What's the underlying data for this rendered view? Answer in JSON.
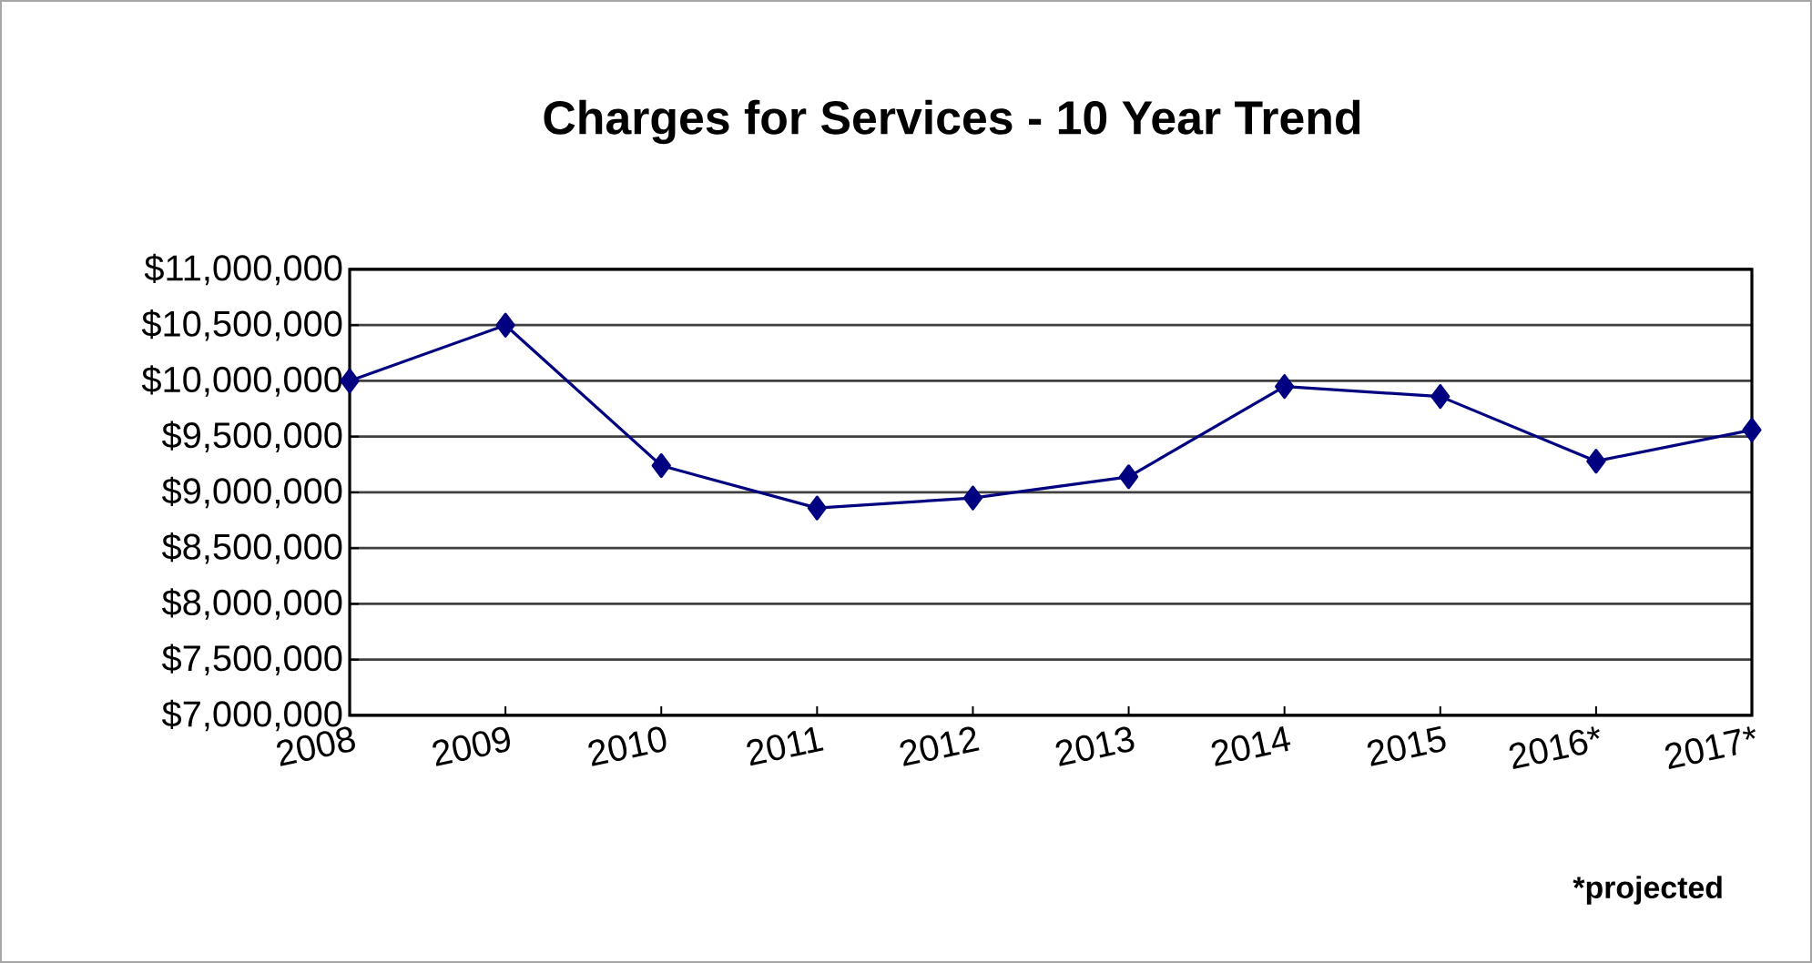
{
  "chart_data": {
    "type": "line",
    "title": "Charges for Services  - 10 Year Trend",
    "categories": [
      "2008",
      "2009",
      "2010",
      "2011",
      "2012",
      "2013",
      "2014",
      "2015",
      "2016*",
      "2017*"
    ],
    "series": [
      {
        "color": "#000080",
        "values": [
          10000000,
          10500000,
          9240000,
          8860000,
          8950000,
          9140000,
          9950000,
          9860000,
          9280000,
          9560000
        ]
      }
    ],
    "ylim": [
      7000000,
      11000000
    ],
    "yticks": [
      {
        "value": 7000000,
        "label": "$7,000,000"
      },
      {
        "value": 7500000,
        "label": "$7,500,000"
      },
      {
        "value": 8000000,
        "label": "$8,000,000"
      },
      {
        "value": 8500000,
        "label": "$8,500,000"
      },
      {
        "value": 9000000,
        "label": "$9,000,000"
      },
      {
        "value": 9500000,
        "label": "$9,500,000"
      },
      {
        "value": 10000000,
        "label": "$10,000,000"
      },
      {
        "value": 10500000,
        "label": "$10,500,000"
      },
      {
        "value": 11000000,
        "label": "$11,000,000"
      }
    ],
    "grid": "y",
    "marker": "diamond",
    "line_style": "solid",
    "annotations": [
      "*projected"
    ]
  }
}
